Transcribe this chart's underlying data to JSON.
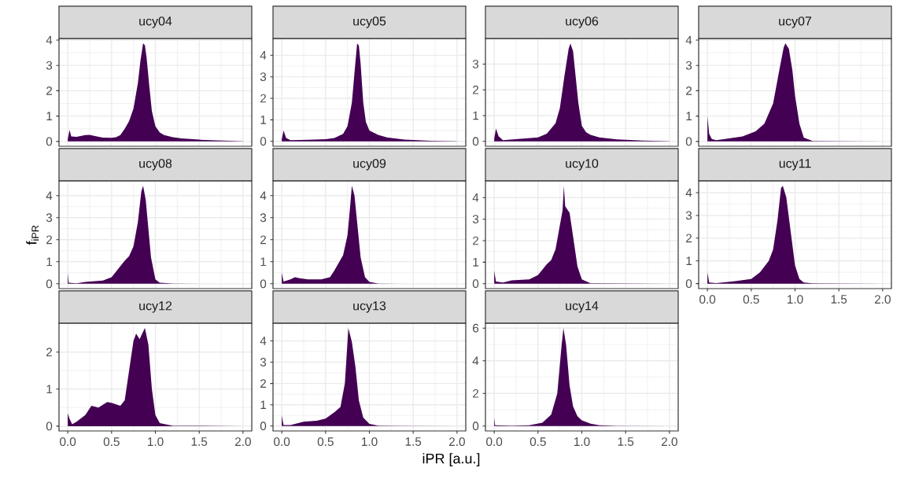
{
  "chart_data": [
    {
      "type": "area",
      "title": "ucy04",
      "color": "#440154",
      "grid": true,
      "tick_labels": "y",
      "xlim": [
        -0.1,
        2.1
      ],
      "ylim": [
        -0.19,
        4.06
      ],
      "yticks": [
        0,
        1,
        2,
        3,
        4
      ],
      "xticks": [
        0,
        0.5,
        1,
        1.5,
        2
      ],
      "x": [
        0,
        0.02,
        0.04,
        0.1,
        0.2,
        0.25,
        0.3,
        0.4,
        0.5,
        0.55,
        0.6,
        0.65,
        0.7,
        0.75,
        0.8,
        0.83,
        0.86,
        0.88,
        0.9,
        0.93,
        0.96,
        1.0,
        1.05,
        1.1,
        1.2,
        1.3,
        1.5,
        1.7,
        2.0
      ],
      "values": [
        0.1,
        0.45,
        0.2,
        0.18,
        0.25,
        0.26,
        0.22,
        0.15,
        0.14,
        0.17,
        0.25,
        0.5,
        0.8,
        1.3,
        2.3,
        3.2,
        3.87,
        3.8,
        3.3,
        2.2,
        1.2,
        0.6,
        0.35,
        0.25,
        0.17,
        0.12,
        0.07,
        0.04,
        0.01
      ]
    },
    {
      "type": "area",
      "title": "ucy05",
      "color": "#440154",
      "grid": true,
      "tick_labels": "y",
      "xlim": [
        -0.1,
        2.1
      ],
      "ylim": [
        -0.23,
        4.78
      ],
      "yticks": [
        0,
        1,
        2,
        3,
        4
      ],
      "xticks": [
        0,
        0.5,
        1,
        1.5,
        2
      ],
      "x": [
        0,
        0.02,
        0.05,
        0.1,
        0.3,
        0.5,
        0.6,
        0.7,
        0.75,
        0.8,
        0.83,
        0.86,
        0.88,
        0.9,
        0.93,
        0.96,
        1.0,
        1.1,
        1.2,
        1.4,
        1.7,
        2.0
      ],
      "values": [
        0.1,
        0.5,
        0.15,
        0.05,
        0.07,
        0.1,
        0.15,
        0.35,
        0.7,
        1.8,
        3.2,
        4.55,
        4.45,
        3.6,
        1.8,
        0.9,
        0.5,
        0.3,
        0.18,
        0.08,
        0.03,
        0.01
      ]
    },
    {
      "type": "area",
      "title": "ucy06",
      "color": "#440154",
      "grid": true,
      "tick_labels": "y",
      "xlim": [
        -0.1,
        2.1
      ],
      "ylim": [
        -0.19,
        3.99
      ],
      "yticks": [
        0,
        1,
        2,
        3
      ],
      "xticks": [
        0,
        0.5,
        1,
        1.5,
        2
      ],
      "x": [
        0,
        0.02,
        0.05,
        0.1,
        0.3,
        0.5,
        0.6,
        0.7,
        0.75,
        0.8,
        0.85,
        0.87,
        0.9,
        0.93,
        0.96,
        1.0,
        1.05,
        1.1,
        1.2,
        1.4,
        1.7,
        2.0
      ],
      "values": [
        0.1,
        0.5,
        0.2,
        0.05,
        0.1,
        0.15,
        0.3,
        0.7,
        1.3,
        2.5,
        3.6,
        3.8,
        3.5,
        2.5,
        1.5,
        0.6,
        0.35,
        0.25,
        0.15,
        0.08,
        0.03,
        0.01
      ]
    },
    {
      "type": "area",
      "title": "ucy07",
      "color": "#440154",
      "grid": true,
      "tick_labels": "y",
      "xlim": [
        -0.1,
        2.1
      ],
      "ylim": [
        -0.19,
        4.06
      ],
      "yticks": [
        0,
        1,
        2,
        3,
        4
      ],
      "xticks": [
        0,
        0.5,
        1,
        1.5,
        2
      ],
      "x": [
        0,
        0.02,
        0.05,
        0.1,
        0.2,
        0.4,
        0.55,
        0.65,
        0.75,
        0.82,
        0.87,
        0.89,
        0.93,
        0.97,
        1.0,
        1.05,
        1.1,
        1.2,
        2.0
      ],
      "values": [
        1.0,
        0.3,
        0.1,
        0.05,
        0.1,
        0.2,
        0.4,
        0.7,
        1.5,
        2.8,
        3.7,
        3.87,
        3.65,
        2.8,
        1.8,
        0.7,
        0.15,
        0.02,
        0.0
      ]
    },
    {
      "type": "area",
      "title": "ucy08",
      "color": "#440154",
      "grid": true,
      "tick_labels": "y",
      "ylabel": "f$_{iPR}$",
      "xlim": [
        -0.1,
        2.1
      ],
      "ylim": [
        -0.22,
        4.67
      ],
      "yticks": [
        0,
        1,
        2,
        3,
        4
      ],
      "xticks": [
        0,
        0.5,
        1,
        1.5,
        2
      ],
      "x": [
        0,
        0.01,
        0.1,
        0.2,
        0.4,
        0.5,
        0.6,
        0.65,
        0.7,
        0.75,
        0.8,
        0.84,
        0.86,
        0.89,
        0.92,
        0.95,
        1.0,
        1.05,
        1.2,
        2.0
      ],
      "values": [
        0.5,
        0.05,
        0.02,
        0.08,
        0.15,
        0.3,
        0.8,
        1.05,
        1.25,
        1.7,
        2.8,
        4.2,
        4.45,
        3.8,
        2.5,
        1.2,
        0.2,
        0.05,
        0.01,
        0.0
      ]
    },
    {
      "type": "area",
      "title": "ucy09",
      "color": "#440154",
      "grid": true,
      "tick_labels": "y",
      "xlim": [
        -0.1,
        2.1
      ],
      "ylim": [
        -0.22,
        4.67
      ],
      "yticks": [
        0,
        1,
        2,
        3,
        4
      ],
      "xticks": [
        0,
        0.5,
        1,
        1.5,
        2
      ],
      "x": [
        0,
        0.02,
        0.1,
        0.15,
        0.2,
        0.3,
        0.45,
        0.55,
        0.6,
        0.65,
        0.7,
        0.75,
        0.78,
        0.8,
        0.83,
        0.86,
        0.9,
        0.95,
        1.0,
        1.1,
        2.0
      ],
      "values": [
        0.5,
        0.1,
        0.2,
        0.3,
        0.25,
        0.2,
        0.2,
        0.3,
        0.6,
        0.95,
        1.3,
        2.2,
        3.5,
        4.45,
        4.0,
        2.8,
        1.2,
        0.3,
        0.08,
        0.01,
        0.0
      ]
    },
    {
      "type": "area",
      "title": "ucy10",
      "color": "#440154",
      "grid": true,
      "tick_labels": "y",
      "xlim": [
        -0.1,
        2.1
      ],
      "ylim": [
        -0.23,
        4.78
      ],
      "yticks": [
        0,
        1,
        2,
        3,
        4
      ],
      "xticks": [
        0,
        0.5,
        1,
        1.5,
        2
      ],
      "x": [
        0,
        0.02,
        0.1,
        0.2,
        0.4,
        0.5,
        0.6,
        0.65,
        0.7,
        0.74,
        0.78,
        0.795,
        0.81,
        0.86,
        0.9,
        0.95,
        1.0,
        1.1,
        2.0
      ],
      "values": [
        0.6,
        0.1,
        0.05,
        0.15,
        0.2,
        0.4,
        0.9,
        1.1,
        1.6,
        2.5,
        3.4,
        4.55,
        3.6,
        3.3,
        2.2,
        0.8,
        0.2,
        0.02,
        0.0
      ]
    },
    {
      "type": "area",
      "title": "ucy11",
      "color": "#440154",
      "grid": true,
      "xlim": [
        -0.1,
        2.1
      ],
      "ylim": [
        -0.22,
        4.52
      ],
      "yticks": [
        0,
        1,
        2,
        3,
        4
      ],
      "xticks": [
        {
          "value": 0,
          "label": "0.0"
        },
        {
          "value": 0.5,
          "label": "0.5"
        },
        {
          "value": 1,
          "label": "1.0"
        },
        {
          "value": 1.5,
          "label": "1.5"
        },
        {
          "value": 2,
          "label": "2.0"
        }
      ],
      "x": [
        0,
        0.02,
        0.1,
        0.3,
        0.5,
        0.6,
        0.7,
        0.75,
        0.8,
        0.84,
        0.86,
        0.9,
        0.95,
        1.0,
        1.05,
        1.1,
        1.2,
        2.0
      ],
      "values": [
        0.5,
        0.05,
        0.02,
        0.1,
        0.2,
        0.5,
        1.0,
        1.5,
        2.8,
        4.2,
        4.3,
        3.8,
        2.3,
        0.8,
        0.2,
        0.05,
        0.01,
        0.0
      ]
    },
    {
      "type": "area",
      "title": "ucy12",
      "color": "#440154",
      "grid": true,
      "xlim": [
        -0.1,
        2.1
      ],
      "ylim": [
        -0.13,
        2.78
      ],
      "yticks": [
        0,
        1,
        2
      ],
      "xticks": [
        {
          "value": 0,
          "label": "0.0"
        },
        {
          "value": 0.5,
          "label": "0.5"
        },
        {
          "value": 1,
          "label": "1.0"
        },
        {
          "value": 1.5,
          "label": "1.5"
        },
        {
          "value": 2,
          "label": "2.0"
        }
      ],
      "x": [
        0,
        0.02,
        0.05,
        0.1,
        0.2,
        0.27,
        0.35,
        0.45,
        0.5,
        0.6,
        0.65,
        0.7,
        0.75,
        0.78,
        0.82,
        0.88,
        0.92,
        0.96,
        1.0,
        1.05,
        1.2,
        2.0
      ],
      "values": [
        0.35,
        0.2,
        0.05,
        0.12,
        0.3,
        0.55,
        0.5,
        0.65,
        0.63,
        0.55,
        0.7,
        1.5,
        2.3,
        2.5,
        2.35,
        2.65,
        2.2,
        1.0,
        0.3,
        0.08,
        0.01,
        0.0
      ]
    },
    {
      "type": "area",
      "title": "ucy13",
      "color": "#440154",
      "grid": true,
      "xlabel": "iPR [a.u.]",
      "xlim": [
        -0.1,
        2.1
      ],
      "ylim": [
        -0.23,
        4.83
      ],
      "yticks": [
        0,
        1,
        2,
        3,
        4
      ],
      "xticks": [
        {
          "value": 0,
          "label": "0.0"
        },
        {
          "value": 0.5,
          "label": "0.5"
        },
        {
          "value": 1,
          "label": "1.0"
        },
        {
          "value": 1.5,
          "label": "1.5"
        },
        {
          "value": 2,
          "label": "2.0"
        }
      ],
      "x": [
        0,
        0.02,
        0.1,
        0.25,
        0.4,
        0.5,
        0.6,
        0.67,
        0.72,
        0.76,
        0.8,
        0.84,
        0.88,
        0.93,
        1.0,
        1.1,
        2.0
      ],
      "values": [
        0.5,
        0.05,
        0.05,
        0.2,
        0.25,
        0.35,
        0.65,
        0.9,
        2.0,
        4.6,
        3.95,
        2.8,
        1.2,
        0.4,
        0.1,
        0.02,
        0.0
      ]
    },
    {
      "type": "area",
      "title": "ucy14",
      "color": "#440154",
      "grid": true,
      "xlim": [
        -0.1,
        2.1
      ],
      "ylim": [
        -0.3,
        6.3
      ],
      "yticks": [
        0,
        2,
        4,
        6
      ],
      "xticks": [
        {
          "value": 0,
          "label": "0.0"
        },
        {
          "value": 0.5,
          "label": "0.5"
        },
        {
          "value": 1,
          "label": "1.0"
        },
        {
          "value": 1.5,
          "label": "1.5"
        },
        {
          "value": 2,
          "label": "2.0"
        }
      ],
      "x": [
        0,
        0.01,
        0.2,
        0.4,
        0.55,
        0.65,
        0.72,
        0.77,
        0.79,
        0.82,
        0.86,
        0.9,
        0.95,
        1.0,
        1.1,
        1.2,
        1.4,
        2.0
      ],
      "values": [
        0.5,
        0.05,
        0.02,
        0.05,
        0.2,
        0.7,
        2.0,
        5.0,
        6.0,
        5.0,
        2.5,
        1.2,
        0.6,
        0.35,
        0.15,
        0.05,
        0.01,
        0.0
      ]
    }
  ]
}
